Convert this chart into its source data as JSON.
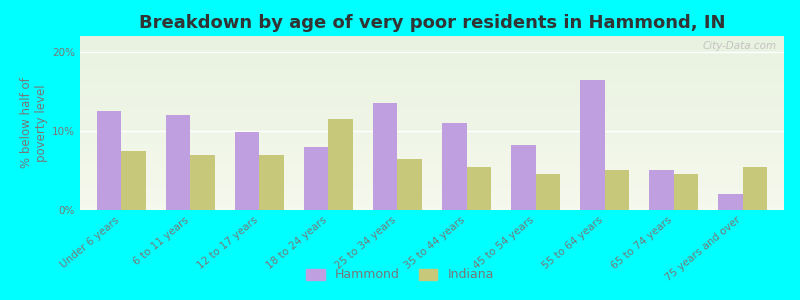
{
  "title": "Breakdown by age of very poor residents in Hammond, IN",
  "ylabel": "% below half of\npoverty level",
  "categories": [
    "Under 6 years",
    "6 to 11 years",
    "12 to 17 years",
    "18 to 24 years",
    "25 to 34 years",
    "35 to 44 years",
    "45 to 54 years",
    "55 to 64 years",
    "65 to 74 years",
    "75 years and over"
  ],
  "hammond_values": [
    12.5,
    12.0,
    9.8,
    8.0,
    13.5,
    11.0,
    8.2,
    16.5,
    5.0,
    2.0
  ],
  "indiana_values": [
    7.5,
    7.0,
    7.0,
    11.5,
    6.5,
    5.5,
    4.5,
    5.0,
    4.5,
    5.5
  ],
  "hammond_color": "#bf9fdf",
  "indiana_color": "#c8c87a",
  "background_color": "#00ffff",
  "plot_bg_top": "#eaf2e2",
  "plot_bg_bottom": "#f5f8ec",
  "ylim": [
    0,
    22
  ],
  "yticks": [
    0,
    10,
    20
  ],
  "ytick_labels": [
    "0%",
    "10%",
    "20%"
  ],
  "bar_width": 0.35,
  "title_fontsize": 13,
  "axis_label_fontsize": 8.5,
  "tick_fontsize": 7.5,
  "legend_fontsize": 9,
  "watermark": "City-Data.com"
}
